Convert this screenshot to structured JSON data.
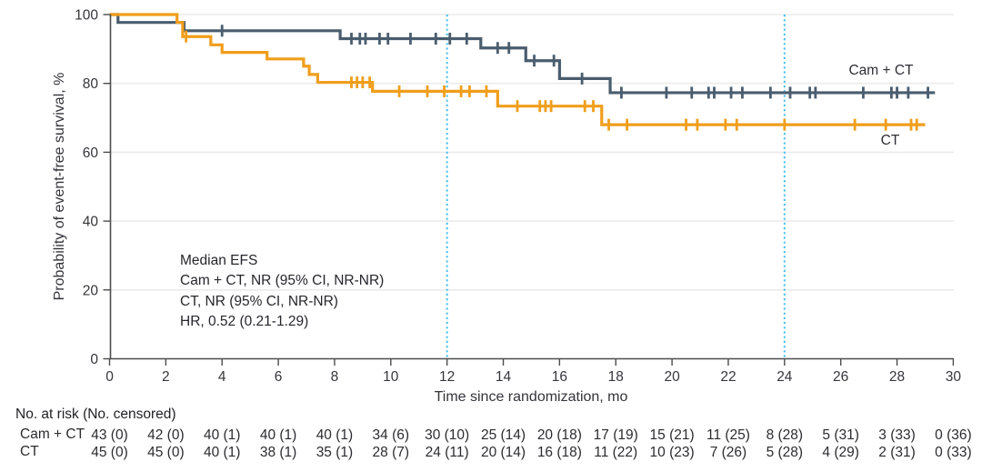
{
  "chart_data": {
    "type": "line",
    "subtype": "kaplan-meier-step",
    "title": "",
    "xlabel": "Time since randomization, mo",
    "ylabel": "Probability of event-free survival, %",
    "xlim": [
      0,
      30
    ],
    "ylim": [
      0,
      100
    ],
    "xticks": [
      0,
      2,
      4,
      6,
      8,
      10,
      12,
      14,
      16,
      18,
      20,
      22,
      24,
      26,
      28,
      30
    ],
    "yticks": [
      0,
      20,
      40,
      60,
      80,
      100
    ],
    "grid": "horizontal",
    "grid_color": "#ebebeb",
    "axis_color": "#4c4c4c",
    "text_color": "#35353b",
    "reference_lines_x": [
      12,
      24
    ],
    "reference_line_color": "#49c0e8",
    "legend_position": "right-of-curves",
    "series": [
      {
        "id": "cam-ct",
        "name": "Cam + CT",
        "color": "#4a5d6e",
        "steps": [
          [
            0,
            100
          ],
          [
            0.3,
            97.7
          ],
          [
            2.65,
            95.3
          ],
          [
            8.2,
            93.0
          ],
          [
            13.2,
            90.3
          ],
          [
            14.8,
            86.6
          ],
          [
            16.0,
            81.4
          ],
          [
            17.8,
            77.3
          ]
        ],
        "end": 29.35,
        "censors": [
          [
            4.0,
            95.3
          ],
          [
            8.6,
            93.0
          ],
          [
            8.9,
            93.0
          ],
          [
            9.1,
            93.0
          ],
          [
            9.6,
            93.0
          ],
          [
            9.9,
            93.0
          ],
          [
            10.7,
            93.0
          ],
          [
            11.6,
            93.0
          ],
          [
            12.1,
            93.0
          ],
          [
            12.7,
            93.0
          ],
          [
            13.8,
            90.3
          ],
          [
            14.2,
            90.3
          ],
          [
            15.1,
            86.6
          ],
          [
            15.8,
            86.6
          ],
          [
            16.8,
            81.4
          ],
          [
            18.2,
            77.3
          ],
          [
            19.8,
            77.3
          ],
          [
            20.7,
            77.3
          ],
          [
            21.3,
            77.3
          ],
          [
            21.5,
            77.3
          ],
          [
            22.1,
            77.3
          ],
          [
            22.5,
            77.3
          ],
          [
            23.5,
            77.3
          ],
          [
            24.2,
            77.3
          ],
          [
            24.9,
            77.3
          ],
          [
            25.1,
            77.3
          ],
          [
            26.8,
            77.3
          ],
          [
            27.8,
            77.3
          ],
          [
            28.0,
            77.3
          ],
          [
            28.4,
            77.3
          ],
          [
            29.1,
            77.3
          ]
        ]
      },
      {
        "id": "ct",
        "name": "CT",
        "color": "#f09e1b",
        "steps": [
          [
            0,
            100
          ],
          [
            2.4,
            97.7
          ],
          [
            2.6,
            93.6
          ],
          [
            3.6,
            91.2
          ],
          [
            4.0,
            89.0
          ],
          [
            5.6,
            87.1
          ],
          [
            6.9,
            85.0
          ],
          [
            7.1,
            82.6
          ],
          [
            7.4,
            80.3
          ],
          [
            9.35,
            77.7
          ],
          [
            13.8,
            73.4
          ],
          [
            17.5,
            68.0
          ]
        ],
        "end": 29.0,
        "censors": [
          [
            2.72,
            93.6
          ],
          [
            8.6,
            80.3
          ],
          [
            8.8,
            80.3
          ],
          [
            9.0,
            80.3
          ],
          [
            9.25,
            80.3
          ],
          [
            10.3,
            77.7
          ],
          [
            11.3,
            77.7
          ],
          [
            11.9,
            77.7
          ],
          [
            12.5,
            77.7
          ],
          [
            12.8,
            77.7
          ],
          [
            13.4,
            77.7
          ],
          [
            14.5,
            73.4
          ],
          [
            15.3,
            73.4
          ],
          [
            15.5,
            73.4
          ],
          [
            15.7,
            73.4
          ],
          [
            16.9,
            73.4
          ],
          [
            17.2,
            73.4
          ],
          [
            17.75,
            68.0
          ],
          [
            18.4,
            68.0
          ],
          [
            20.5,
            68.0
          ],
          [
            20.9,
            68.0
          ],
          [
            21.9,
            68.0
          ],
          [
            22.3,
            68.0
          ],
          [
            24.0,
            68.0
          ],
          [
            26.5,
            68.0
          ],
          [
            27.6,
            68.0
          ],
          [
            28.5,
            68.0
          ],
          [
            28.7,
            68.0
          ]
        ]
      }
    ],
    "annotation": [
      "Median EFS",
      "Cam + CT, NR (95% CI, NR-NR)",
      "CT, NR (95% CI, NR-NR)",
      "HR, 0.52 (0.21-1.29)"
    ],
    "risk_table": {
      "header": "No. at risk (No. censored)",
      "times": [
        0,
        2,
        4,
        6,
        8,
        10,
        12,
        14,
        16,
        18,
        20,
        22,
        24,
        26,
        28,
        30
      ],
      "rows": [
        {
          "name": "Cam + CT",
          "values": [
            "43 (0)",
            "42 (0)",
            "40 (1)",
            "40 (1)",
            "40 (1)",
            "34 (6)",
            "30 (10)",
            "25 (14)",
            "20 (18)",
            "17 (19)",
            "15 (21)",
            "11 (25)",
            "8 (28)",
            "5 (31)",
            "3 (33)",
            "0 (36)"
          ]
        },
        {
          "name": "CT",
          "values": [
            "45 (0)",
            "45 (0)",
            "40 (1)",
            "38 (1)",
            "35 (1)",
            "28 (7)",
            "24 (11)",
            "20 (14)",
            "16 (18)",
            "11 (22)",
            "10 (23)",
            "7 (26)",
            "5 (28)",
            "4 (29)",
            "2 (31)",
            "0 (33)"
          ]
        }
      ]
    }
  }
}
